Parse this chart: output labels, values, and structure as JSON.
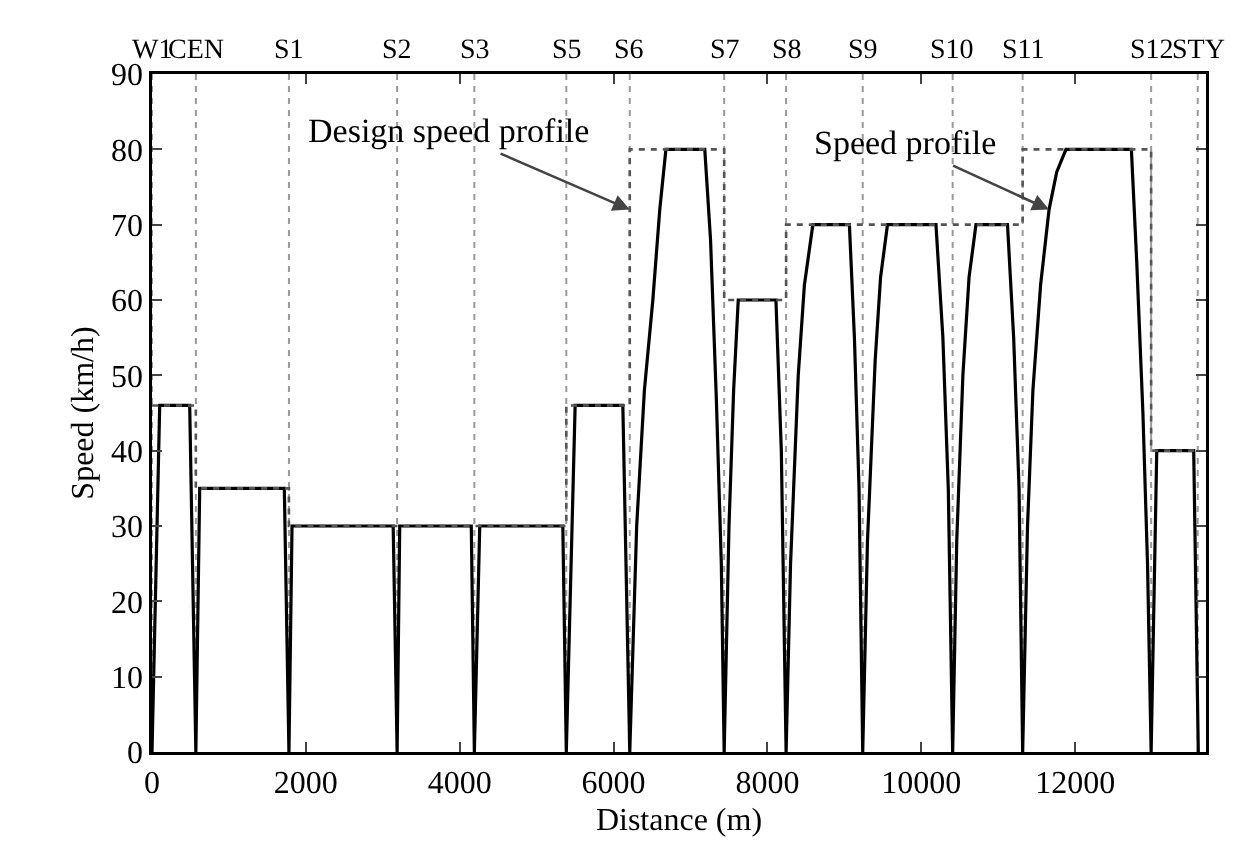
{
  "chart_data": {
    "type": "line",
    "xlabel": "Distance (m)",
    "ylabel": "Speed (km/h)",
    "xlim": [
      0,
      13700
    ],
    "xticks": [
      0,
      2000,
      4000,
      6000,
      8000,
      10000,
      12000
    ],
    "ylim": [
      0,
      90
    ],
    "yticks": [
      0,
      10,
      20,
      30,
      40,
      50,
      60,
      70,
      80,
      90
    ],
    "grid": false,
    "marker": "none",
    "series": [
      {
        "color": "#000000",
        "line_style": "solid",
        "x": [
          0,
          100,
          490,
          570,
          620,
          1720,
          1780,
          1820,
          3135,
          3186,
          3220,
          4150,
          4190,
          4260,
          5340,
          5385,
          5500,
          6120,
          6210,
          6300,
          6400,
          6510,
          6600,
          6680,
          7185,
          7260,
          7335,
          7400,
          7437,
          7500,
          7560,
          7620,
          8110,
          8180,
          8242,
          8300,
          8400,
          8480,
          8590,
          9065,
          9130,
          9190,
          9238,
          9300,
          9400,
          9470,
          9560,
          10190,
          10280,
          10350,
          10407,
          10460,
          10540,
          10620,
          10710,
          11120,
          11200,
          11270,
          11317,
          11380,
          11450,
          11550,
          11660,
          11760,
          11880,
          12730,
          12800,
          12880,
          12940,
          12987,
          13060,
          13540,
          13600
        ],
        "values": [
          0,
          46,
          46,
          0,
          35,
          35,
          0,
          30,
          30,
          0,
          30,
          30,
          0,
          30,
          30,
          0,
          46,
          46,
          0,
          30,
          48,
          60,
          72,
          80,
          80,
          68,
          47,
          25,
          0,
          30,
          48,
          60,
          60,
          40,
          0,
          25,
          50,
          62,
          70,
          70,
          55,
          35,
          0,
          28,
          52,
          63,
          70,
          70,
          55,
          35,
          0,
          28,
          50,
          63,
          70,
          70,
          55,
          35,
          0,
          30,
          48,
          62,
          72,
          77,
          80,
          80,
          65,
          45,
          25,
          0,
          40,
          40,
          0
        ]
      },
      {
        "type": "step",
        "color": "#555555",
        "line_style": "dotted",
        "x": [
          0,
          570,
          1780,
          3186,
          4190,
          5385,
          6210,
          7437,
          8242,
          9238,
          10407,
          11317,
          12987,
          13592
        ],
        "values": [
          46,
          35,
          30,
          30,
          30,
          46,
          80,
          60,
          70,
          70,
          70,
          80,
          40,
          40
        ]
      }
    ],
    "ref_lines": [
      {
        "axis": "x",
        "value": 0,
        "label": "W1"
      },
      {
        "axis": "x",
        "value": 570,
        "label": "CEN"
      },
      {
        "axis": "x",
        "value": 1780,
        "label": "S1"
      },
      {
        "axis": "x",
        "value": 3186,
        "label": "S2"
      },
      {
        "axis": "x",
        "value": 4190,
        "label": "S3"
      },
      {
        "axis": "x",
        "value": 5385,
        "label": "S5"
      },
      {
        "axis": "x",
        "value": 6210,
        "label": "S6"
      },
      {
        "axis": "x",
        "value": 7437,
        "label": "S7"
      },
      {
        "axis": "x",
        "value": 8242,
        "label": "S8"
      },
      {
        "axis": "x",
        "value": 9238,
        "label": "S9"
      },
      {
        "axis": "x",
        "value": 10407,
        "label": "S10"
      },
      {
        "axis": "x",
        "value": 11317,
        "label": "S11"
      },
      {
        "axis": "x",
        "value": 12987,
        "label": "S12"
      },
      {
        "axis": "x",
        "value": 13592,
        "label": "STY"
      }
    ],
    "annotations": [
      {
        "text": "Design speed profile",
        "x": 6210,
        "y": 72
      },
      {
        "text": "Speed profile",
        "x": 11660,
        "y": 72
      }
    ]
  }
}
